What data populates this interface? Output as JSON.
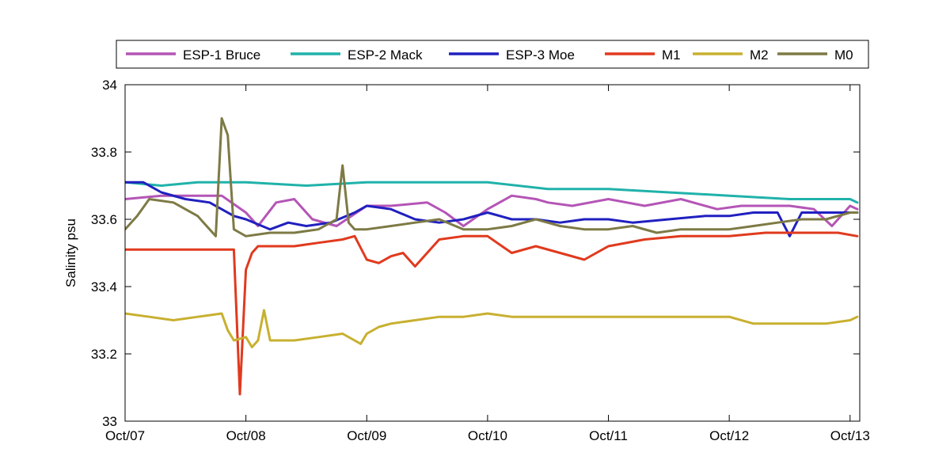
{
  "chart_data": {
    "type": "line",
    "title": "",
    "xlabel": "",
    "ylabel": "Salinity psu",
    "xlim": [
      "2006-10-07",
      "2006-10-13T02:00"
    ],
    "ylim": [
      33,
      34
    ],
    "xticks": [
      "Oct/07",
      "Oct/08",
      "Oct/09",
      "Oct/10",
      "Oct/11",
      "Oct/12",
      "Oct/13"
    ],
    "yticks": [
      "33",
      "33.2",
      "33.4",
      "33.6",
      "33.8",
      "34"
    ],
    "grid": false,
    "legend_position": "top",
    "legend_orientation": "horizontal",
    "x_unit": "day index from Oct/07",
    "series": [
      {
        "name": "ESP-1 Bruce",
        "color": "#b455b6",
        "x": [
          0.0,
          0.3,
          0.6,
          0.8,
          1.0,
          1.1,
          1.25,
          1.4,
          1.55,
          1.75,
          2.0,
          2.2,
          2.5,
          2.65,
          2.8,
          3.0,
          3.2,
          3.4,
          3.5,
          3.7,
          4.0,
          4.3,
          4.6,
          4.9,
          5.1,
          5.3,
          5.5,
          5.7,
          5.85,
          5.95,
          6.0,
          6.06
        ],
        "y": [
          33.66,
          33.67,
          33.67,
          33.67,
          33.62,
          33.58,
          33.65,
          33.66,
          33.6,
          33.58,
          33.64,
          33.64,
          33.65,
          33.62,
          33.58,
          33.63,
          33.67,
          33.66,
          33.65,
          33.64,
          33.66,
          33.64,
          33.66,
          33.63,
          33.64,
          33.64,
          33.64,
          33.63,
          33.58,
          33.62,
          33.64,
          33.63
        ]
      },
      {
        "name": "ESP-2 Mack",
        "color": "#20b2aa",
        "x": [
          0.0,
          0.3,
          0.6,
          1.0,
          1.5,
          2.0,
          2.5,
          3.0,
          3.5,
          4.0,
          4.5,
          5.0,
          5.5,
          6.0,
          6.06
        ],
        "y": [
          33.71,
          33.7,
          33.71,
          33.71,
          33.7,
          33.71,
          33.71,
          33.71,
          33.69,
          33.69,
          33.68,
          33.67,
          33.66,
          33.66,
          33.65
        ]
      },
      {
        "name": "ESP-3 Moe",
        "color": "#2020c0",
        "x": [
          0.0,
          0.15,
          0.3,
          0.5,
          0.7,
          0.9,
          1.0,
          1.2,
          1.35,
          1.5,
          1.7,
          1.9,
          2.0,
          2.2,
          2.4,
          2.6,
          2.8,
          3.0,
          3.2,
          3.4,
          3.6,
          3.8,
          4.0,
          4.2,
          4.5,
          4.8,
          5.0,
          5.2,
          5.4,
          5.5,
          5.6,
          5.8,
          6.0,
          6.06
        ],
        "y": [
          33.71,
          33.71,
          33.68,
          33.66,
          33.65,
          33.61,
          33.6,
          33.57,
          33.59,
          33.58,
          33.59,
          33.62,
          33.64,
          33.63,
          33.6,
          33.59,
          33.6,
          33.62,
          33.6,
          33.6,
          33.59,
          33.6,
          33.6,
          33.59,
          33.6,
          33.61,
          33.61,
          33.62,
          33.62,
          33.55,
          33.62,
          33.62,
          33.62,
          33.62
        ]
      },
      {
        "name": "M1",
        "color": "#e03a1e",
        "x": [
          0.0,
          0.3,
          0.6,
          0.8,
          0.9,
          0.95,
          1.0,
          1.05,
          1.1,
          1.2,
          1.4,
          1.6,
          1.8,
          1.9,
          2.0,
          2.1,
          2.2,
          2.3,
          2.4,
          2.6,
          2.8,
          3.0,
          3.2,
          3.4,
          3.6,
          3.8,
          4.0,
          4.3,
          4.6,
          5.0,
          5.3,
          5.6,
          5.9,
          6.06
        ],
        "y": [
          33.51,
          33.51,
          33.51,
          33.51,
          33.51,
          33.08,
          33.45,
          33.5,
          33.52,
          33.52,
          33.52,
          33.53,
          33.54,
          33.55,
          33.48,
          33.47,
          33.49,
          33.5,
          33.46,
          33.54,
          33.55,
          33.55,
          33.5,
          33.52,
          33.5,
          33.48,
          33.52,
          33.54,
          33.55,
          33.55,
          33.56,
          33.56,
          33.56,
          33.55
        ]
      },
      {
        "name": "M2",
        "color": "#c8b030",
        "x": [
          0.0,
          0.2,
          0.4,
          0.6,
          0.8,
          0.85,
          0.9,
          1.0,
          1.05,
          1.1,
          1.15,
          1.2,
          1.4,
          1.6,
          1.8,
          1.95,
          2.0,
          2.1,
          2.2,
          2.4,
          2.6,
          2.8,
          3.0,
          3.2,
          3.4,
          3.6,
          4.0,
          4.5,
          5.0,
          5.2,
          5.4,
          5.6,
          5.8,
          6.0,
          6.06
        ],
        "y": [
          33.32,
          33.31,
          33.3,
          33.31,
          33.32,
          33.27,
          33.24,
          33.25,
          33.22,
          33.24,
          33.33,
          33.24,
          33.24,
          33.25,
          33.26,
          33.23,
          33.26,
          33.28,
          33.29,
          33.3,
          33.31,
          33.31,
          33.32,
          33.31,
          33.31,
          33.31,
          33.31,
          33.31,
          33.31,
          33.29,
          33.29,
          33.29,
          33.29,
          33.3,
          33.31
        ]
      },
      {
        "name": "M0",
        "color": "#7d7a45",
        "x": [
          0.0,
          0.1,
          0.2,
          0.4,
          0.6,
          0.75,
          0.8,
          0.85,
          0.9,
          0.95,
          1.0,
          1.2,
          1.4,
          1.6,
          1.75,
          1.8,
          1.85,
          1.9,
          2.0,
          2.2,
          2.4,
          2.6,
          2.8,
          3.0,
          3.2,
          3.4,
          3.6,
          3.8,
          4.0,
          4.2,
          4.4,
          4.6,
          4.8,
          5.0,
          5.2,
          5.4,
          5.6,
          5.8,
          6.0,
          6.06
        ],
        "y": [
          33.57,
          33.61,
          33.66,
          33.65,
          33.61,
          33.55,
          33.9,
          33.85,
          33.57,
          33.56,
          33.55,
          33.56,
          33.56,
          33.57,
          33.6,
          33.76,
          33.59,
          33.57,
          33.57,
          33.58,
          33.59,
          33.6,
          33.57,
          33.57,
          33.58,
          33.6,
          33.58,
          33.57,
          33.57,
          33.58,
          33.56,
          33.57,
          33.57,
          33.57,
          33.58,
          33.59,
          33.6,
          33.6,
          33.62,
          33.62
        ]
      }
    ]
  }
}
